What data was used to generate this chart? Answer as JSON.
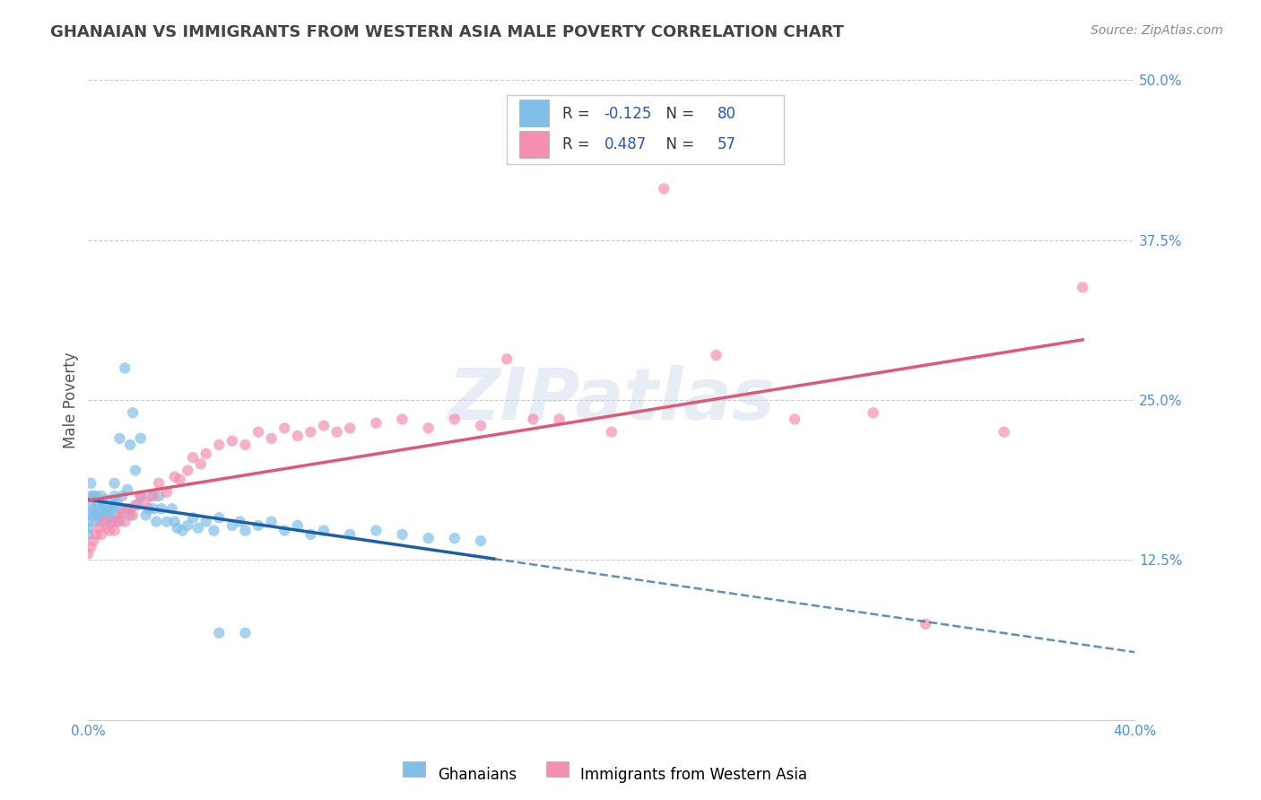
{
  "title": "GHANAIAN VS IMMIGRANTS FROM WESTERN ASIA MALE POVERTY CORRELATION CHART",
  "source": "Source: ZipAtlas.com",
  "ylabel": "Male Poverty",
  "xlim": [
    0.0,
    0.4
  ],
  "ylim": [
    0.0,
    0.5
  ],
  "xticks": [
    0.0,
    0.1,
    0.2,
    0.3,
    0.4
  ],
  "xtick_labels": [
    "0.0%",
    "",
    "",
    "",
    "40.0%"
  ],
  "yticks": [
    0.0,
    0.125,
    0.25,
    0.375,
    0.5
  ],
  "ytick_labels_right": [
    "",
    "12.5%",
    "25.0%",
    "37.5%",
    "50.0%"
  ],
  "watermark": "ZIPatlas",
  "legend_entries": [
    {
      "label": "Ghanaians",
      "R": -0.125,
      "N": 80,
      "color": "#a8c8f0"
    },
    {
      "label": "Immigrants from Western Asia",
      "R": 0.487,
      "N": 57,
      "color": "#f8a8b8"
    }
  ],
  "ghanaian_dots_color": "#7fbfe8",
  "western_asia_dots_color": "#f48fb1",
  "trend_ghanaian_color": "#1a5fa8",
  "trend_western_asia_color": "#e05878",
  "background_color": "#ffffff",
  "grid_color": "#cccccc",
  "title_color": "#444444",
  "axis_label_color": "#555555",
  "tick_color": "#4a90d9",
  "ghanaian_data_x": [
    0.0,
    0.0,
    0.0,
    0.0,
    0.001,
    0.001,
    0.001,
    0.002,
    0.002,
    0.002,
    0.003,
    0.003,
    0.003,
    0.004,
    0.004,
    0.005,
    0.005,
    0.005,
    0.006,
    0.006,
    0.007,
    0.007,
    0.008,
    0.008,
    0.009,
    0.009,
    0.01,
    0.01,
    0.01,
    0.011,
    0.011,
    0.012,
    0.012,
    0.013,
    0.013,
    0.014,
    0.015,
    0.015,
    0.016,
    0.016,
    0.017,
    0.018,
    0.019,
    0.02,
    0.02,
    0.022,
    0.023,
    0.024,
    0.025,
    0.026,
    0.027,
    0.028,
    0.03,
    0.032,
    0.033,
    0.034,
    0.036,
    0.038,
    0.04,
    0.042,
    0.045,
    0.048,
    0.05,
    0.055,
    0.058,
    0.06,
    0.065,
    0.07,
    0.075,
    0.08,
    0.085,
    0.09,
    0.1,
    0.11,
    0.12,
    0.13,
    0.14,
    0.15,
    0.05,
    0.06
  ],
  "ghanaian_data_y": [
    0.155,
    0.16,
    0.145,
    0.15,
    0.168,
    0.175,
    0.185,
    0.16,
    0.165,
    0.175,
    0.155,
    0.162,
    0.175,
    0.158,
    0.168,
    0.165,
    0.175,
    0.155,
    0.168,
    0.16,
    0.162,
    0.172,
    0.165,
    0.158,
    0.155,
    0.165,
    0.175,
    0.168,
    0.185,
    0.16,
    0.17,
    0.155,
    0.22,
    0.165,
    0.175,
    0.275,
    0.165,
    0.18,
    0.16,
    0.215,
    0.24,
    0.195,
    0.168,
    0.22,
    0.175,
    0.16,
    0.165,
    0.175,
    0.165,
    0.155,
    0.175,
    0.165,
    0.155,
    0.165,
    0.155,
    0.15,
    0.148,
    0.152,
    0.158,
    0.15,
    0.155,
    0.148,
    0.158,
    0.152,
    0.155,
    0.148,
    0.152,
    0.155,
    0.148,
    0.152,
    0.145,
    0.148,
    0.145,
    0.148,
    0.145,
    0.142,
    0.142,
    0.14,
    0.068,
    0.068
  ],
  "western_asia_data_x": [
    0.0,
    0.001,
    0.002,
    0.003,
    0.004,
    0.005,
    0.006,
    0.007,
    0.008,
    0.009,
    0.01,
    0.011,
    0.012,
    0.013,
    0.014,
    0.015,
    0.016,
    0.017,
    0.018,
    0.02,
    0.022,
    0.025,
    0.027,
    0.03,
    0.033,
    0.035,
    0.038,
    0.04,
    0.043,
    0.045,
    0.05,
    0.055,
    0.06,
    0.065,
    0.07,
    0.075,
    0.08,
    0.085,
    0.09,
    0.095,
    0.1,
    0.11,
    0.12,
    0.13,
    0.14,
    0.15,
    0.16,
    0.17,
    0.18,
    0.2,
    0.22,
    0.24,
    0.27,
    0.3,
    0.32,
    0.35,
    0.38
  ],
  "western_asia_data_y": [
    0.13,
    0.135,
    0.14,
    0.145,
    0.15,
    0.145,
    0.155,
    0.15,
    0.148,
    0.155,
    0.148,
    0.155,
    0.158,
    0.162,
    0.155,
    0.165,
    0.165,
    0.16,
    0.168,
    0.175,
    0.17,
    0.175,
    0.185,
    0.178,
    0.19,
    0.188,
    0.195,
    0.205,
    0.2,
    0.208,
    0.215,
    0.218,
    0.215,
    0.225,
    0.22,
    0.228,
    0.222,
    0.225,
    0.23,
    0.225,
    0.228,
    0.232,
    0.235,
    0.228,
    0.235,
    0.23,
    0.282,
    0.235,
    0.235,
    0.225,
    0.415,
    0.285,
    0.235,
    0.24,
    0.075,
    0.225,
    0.338
  ],
  "trend_ghanaian_x_start": 0.0,
  "trend_ghanaian_x_end": 0.155,
  "trend_ghanaian_x_dash_end": 0.4,
  "trend_western_x_start": 0.0,
  "trend_western_x_end": 0.38,
  "trend_western_x_dash_end": 0.4
}
